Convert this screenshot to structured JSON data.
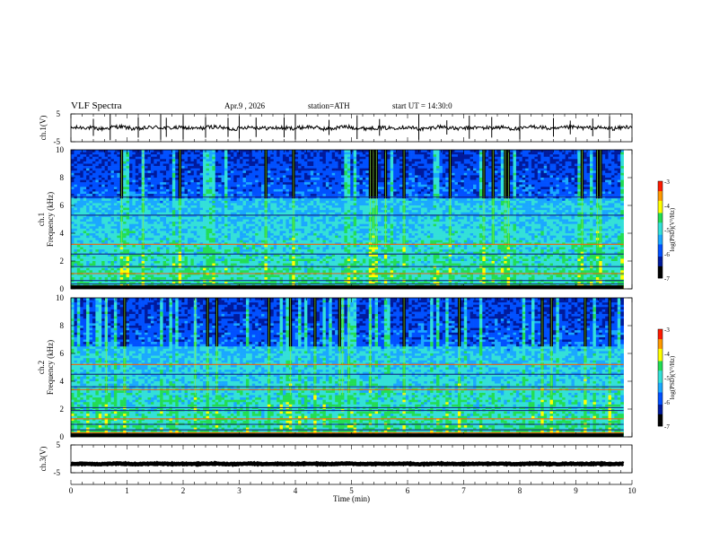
{
  "header": {
    "title": "VLF Spectra",
    "date": "Apr.9 , 2026",
    "station": "station=ATH",
    "start": "start UT =  14:30:0"
  },
  "colors": {
    "background": "#ffffff",
    "axis": "#000000",
    "trace": "#000000",
    "colormap": [
      "#000000",
      "#001a9c",
      "#0050ff",
      "#1aa8ff",
      "#33e0d8",
      "#22dd55",
      "#ffff00",
      "#ff9a00",
      "#ff1a00",
      "#ffffff"
    ]
  },
  "chart_data": [
    {
      "type": "line",
      "name": "ch1-waveform",
      "ylabel": "ch.1(V)",
      "ylim": [
        -5,
        5
      ],
      "y_ticks": [
        "5",
        "-5"
      ],
      "x_range": [
        0,
        10
      ],
      "trace_mean": 0,
      "trace_noise": 0.7,
      "spike_times": [
        0.4,
        0.7,
        1.2,
        1.6,
        1.7,
        2.0,
        2.4,
        2.8,
        3.0,
        3.3,
        3.8,
        4.0,
        4.6,
        5.1,
        5.5,
        6.2,
        6.7,
        7.1,
        7.5,
        8.0,
        8.6,
        8.9,
        9.3,
        9.6
      ]
    },
    {
      "type": "heatmap",
      "name": "ch1-spectrogram",
      "ylabel": "ch.1\nFrequency (kHz)",
      "ylabel_line1": "ch.1",
      "ylabel_line2": "Frequency (kHz)",
      "ylim": [
        0,
        10
      ],
      "y_ticks": [
        "0",
        "2",
        "4",
        "6",
        "8",
        "10"
      ],
      "x_range": [
        0,
        9.85
      ],
      "colorbar": {
        "label": "log(PSD)(V²/Hz)",
        "range": [
          -7,
          -3
        ],
        "ticks": [
          "-3",
          "-4",
          "-5",
          "-6",
          "-7"
        ]
      },
      "lines_khz": [
        0.2,
        0.35,
        0.6,
        1.1,
        1.6,
        2.5,
        3.2,
        5.3,
        6.6
      ],
      "sferic_strength": 0.55
    },
    {
      "type": "heatmap",
      "name": "ch2-spectrogram",
      "ylabel": "ch.2\nFrequency (kHz)",
      "ylabel_line1": "ch.2",
      "ylabel_line2": "Frequency (kHz)",
      "ylim": [
        0,
        10
      ],
      "y_ticks": [
        "0",
        "2",
        "4",
        "6",
        "8",
        "10"
      ],
      "x_range": [
        0,
        9.85
      ],
      "colorbar": {
        "label": "log(PSD)(V²/Hz)",
        "range": [
          -7,
          -3
        ],
        "ticks": [
          "-3",
          "-4",
          "-5",
          "-6",
          "-7"
        ]
      },
      "lines_khz": [
        0.3,
        0.5,
        0.9,
        1.3,
        1.9,
        2.1,
        3.4,
        3.6,
        4.5,
        5.2
      ],
      "sferic_strength": 0.8
    },
    {
      "type": "line",
      "name": "ch3-waveform",
      "ylabel": "ch.3(V)",
      "ylim": [
        -5,
        5
      ],
      "y_ticks": [
        "5",
        "-5"
      ],
      "x_range": [
        0,
        9.85
      ],
      "trace_mean": -1.8,
      "trace_noise": 0.15,
      "spike_times": []
    }
  ],
  "x_axis": {
    "label": "Time (min)",
    "range": [
      0,
      10
    ],
    "ticks": [
      "0",
      "1",
      "2",
      "3",
      "4",
      "5",
      "6",
      "7",
      "8",
      "9",
      "10"
    ]
  }
}
